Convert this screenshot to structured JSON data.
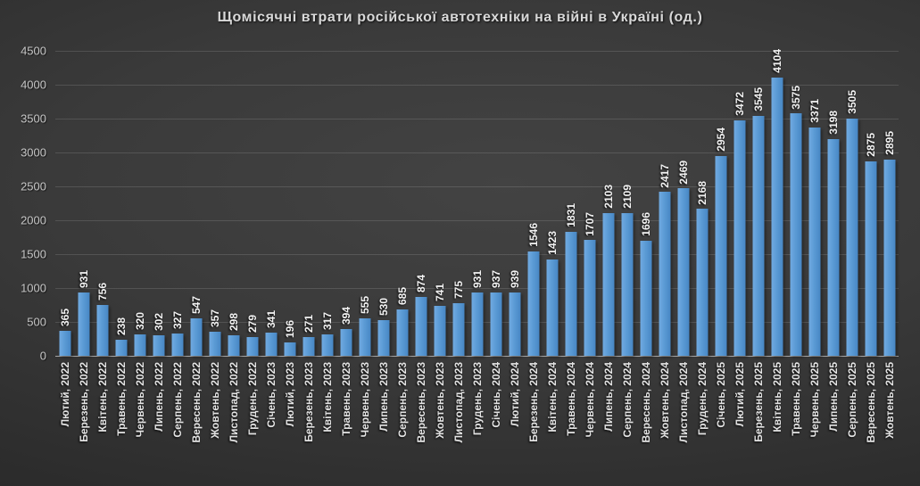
{
  "title": "Щомісячні втрати російської автотехніки на війні в Україні (од.)",
  "colors": {
    "bar": "#5b9bd5",
    "background_dark": "#2d2d2d",
    "title_text": "#d9d9d9",
    "axis_text": "#c6c6c6",
    "data_label_text": "#f2f2f2"
  },
  "chart_data": {
    "type": "bar",
    "title": "Щомісячні втрати російської автотехніки на війні в Україні (од.)",
    "xlabel": "",
    "ylabel": "",
    "ylim": [
      0,
      4500
    ],
    "ytick_step": 500,
    "yticks": [
      0,
      500,
      1000,
      1500,
      2000,
      2500,
      3000,
      3500,
      4000,
      4500
    ],
    "grid": true,
    "legend": false,
    "data_labels": true,
    "data_label_rotation": 90,
    "x_label_rotation": 90,
    "categories": [
      "Лютий, 2022",
      "Березень, 2022",
      "Квітень, 2022",
      "Травень, 2022",
      "Червень, 2022",
      "Липень, 2022",
      "Серпень, 2022",
      "Вересень, 2022",
      "Жовтень, 2022",
      "Листопад, 2022",
      "Грудень, 2022",
      "Січень, 2023",
      "Лютий, 2023",
      "Березень, 2023",
      "Квітень, 2023",
      "Травень, 2023",
      "Червень, 2023",
      "Липень, 2023",
      "Серпень, 2023",
      "Вересень, 2023",
      "Жовтень, 2023",
      "Листопад, 2023",
      "Грудень, 2023",
      "Січень, 2024",
      "Лютий, 2024",
      "Березень, 2024",
      "Квітень, 2024",
      "Травень, 2024",
      "Червень, 2024",
      "Липень, 2024",
      "Серпень, 2024",
      "Вересень, 2024",
      "Жовтень, 2024",
      "Листопад, 2024",
      "Грудень, 2024",
      "Січень, 2025",
      "Лютий, 2025",
      "Березень, 2025",
      "Квітень, 2025",
      "Травень, 2025",
      "Червень, 2025",
      "Липень, 2025",
      "Серпень, 2025",
      "Вересень, 2025",
      "Жовтень, 2025"
    ],
    "values": [
      365,
      931,
      756,
      238,
      320,
      302,
      327,
      547,
      357,
      298,
      279,
      341,
      196,
      271,
      317,
      394,
      555,
      530,
      685,
      874,
      741,
      775,
      931,
      937,
      939,
      1546,
      1423,
      1831,
      1707,
      2103,
      2109,
      1696,
      2417,
      2469,
      2168,
      2954,
      3472,
      3545,
      4104,
      3575,
      3371,
      3198,
      3505,
      2875,
      2895
    ]
  }
}
